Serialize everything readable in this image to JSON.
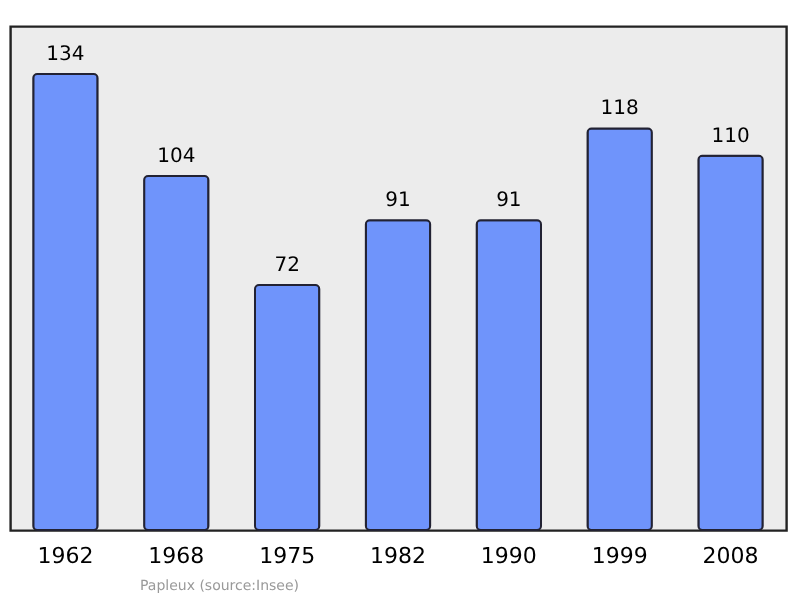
{
  "chart_data": {
    "type": "bar",
    "categories": [
      "1962",
      "1968",
      "1975",
      "1982",
      "1990",
      "1999",
      "2008"
    ],
    "values": [
      134,
      104,
      72,
      91,
      91,
      118,
      110
    ],
    "color": "#6f94fb",
    "data_labels": true,
    "annotations": [
      "Papleux    (source:Insee)"
    ]
  }
}
